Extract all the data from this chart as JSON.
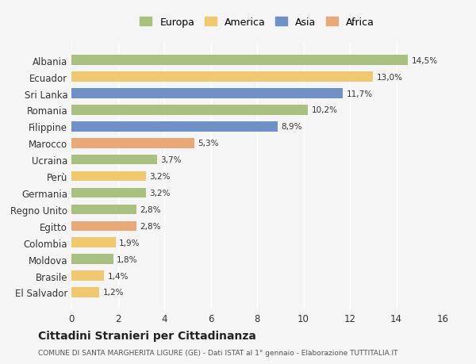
{
  "countries": [
    "El Salvador",
    "Brasile",
    "Moldova",
    "Colombia",
    "Egitto",
    "Regno Unito",
    "Germania",
    "Perù",
    "Ucraina",
    "Marocco",
    "Filippine",
    "Romania",
    "Sri Lanka",
    "Ecuador",
    "Albania"
  ],
  "values": [
    1.2,
    1.4,
    1.8,
    1.9,
    2.8,
    2.8,
    3.2,
    3.2,
    3.7,
    5.3,
    8.9,
    10.2,
    11.7,
    13.0,
    14.5
  ],
  "continents": [
    "America",
    "America",
    "Europa",
    "America",
    "Africa",
    "Europa",
    "Europa",
    "America",
    "Europa",
    "Africa",
    "Asia",
    "Europa",
    "Asia",
    "America",
    "Europa"
  ],
  "colors": {
    "Europa": "#a8c080",
    "America": "#f0c870",
    "Asia": "#7090c8",
    "Africa": "#e8a878"
  },
  "labels": [
    "1,2%",
    "1,4%",
    "1,8%",
    "1,9%",
    "2,8%",
    "2,8%",
    "3,2%",
    "3,2%",
    "3,7%",
    "5,3%",
    "8,9%",
    "10,2%",
    "11,7%",
    "13,0%",
    "14,5%"
  ],
  "xlim": [
    0,
    16
  ],
  "xticks": [
    0,
    2,
    4,
    6,
    8,
    10,
    12,
    14,
    16
  ],
  "title": "Cittadini Stranieri per Cittadinanza",
  "subtitle": "COMUNE DI SANTA MARGHERITA LIGURE (GE) - Dati ISTAT al 1° gennaio - Elaborazione TUTTITALIA.IT",
  "legend_labels": [
    "Europa",
    "America",
    "Asia",
    "Africa"
  ],
  "background_color": "#f5f5f5",
  "bar_height": 0.6
}
